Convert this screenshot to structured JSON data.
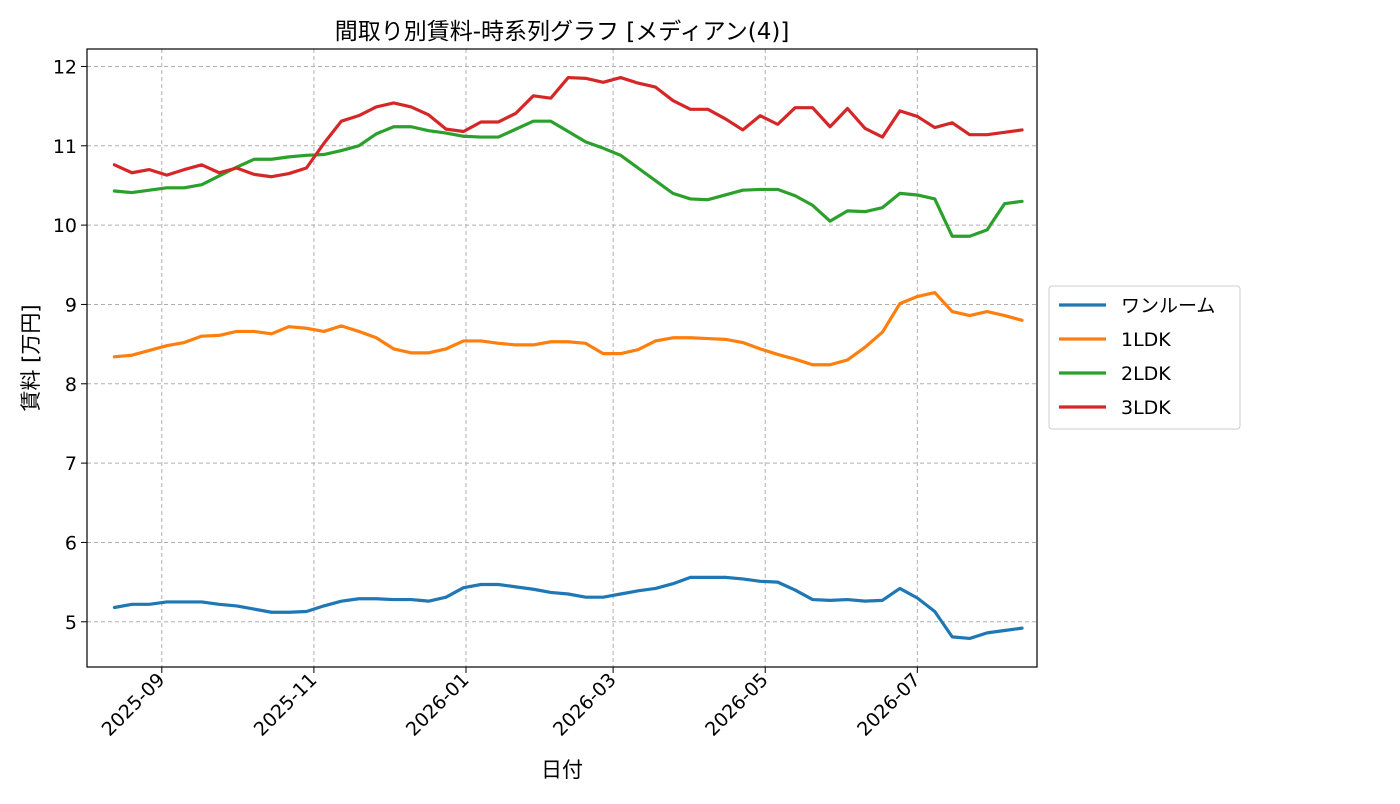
{
  "chart_data": {
    "type": "line",
    "title": "間取り別賃料-時系列グラフ [メディアン(4)]",
    "xlabel": "日付",
    "ylabel": "賃料 [万円]",
    "xlim": [
      "2025-08-02",
      "2026-08-18"
    ],
    "ylim": [
      4.43,
      12.22
    ],
    "x_ticks": [
      "2025-09",
      "2025-11",
      "2026-01",
      "2026-03",
      "2026-05",
      "2026-07"
    ],
    "y_ticks": [
      5,
      6,
      7,
      8,
      9,
      10,
      11,
      12
    ],
    "grid": true,
    "legend_position": "right",
    "x": [
      "2025-08-13",
      "2025-08-20",
      "2025-08-27",
      "2025-09-03",
      "2025-09-10",
      "2025-09-17",
      "2025-09-24",
      "2025-10-01",
      "2025-10-08",
      "2025-10-15",
      "2025-10-22",
      "2025-10-29",
      "2025-11-05",
      "2025-11-12",
      "2025-11-19",
      "2025-11-26",
      "2025-12-03",
      "2025-12-10",
      "2025-12-17",
      "2025-12-24",
      "2025-12-31",
      "2026-01-07",
      "2026-01-14",
      "2026-01-21",
      "2026-01-28",
      "2026-02-04",
      "2026-02-11",
      "2026-02-18",
      "2026-02-25",
      "2026-03-04",
      "2026-03-11",
      "2026-03-18",
      "2026-03-25",
      "2026-04-01",
      "2026-04-08",
      "2026-04-15",
      "2026-04-22",
      "2026-04-29",
      "2026-05-06",
      "2026-05-13",
      "2026-05-20",
      "2026-05-27",
      "2026-06-03",
      "2026-06-10",
      "2026-06-17",
      "2026-06-24",
      "2026-07-01",
      "2026-07-08",
      "2026-07-15",
      "2026-07-22",
      "2026-07-29",
      "2026-08-05",
      "2026-08-12"
    ],
    "series": [
      {
        "name": "ワンルーム",
        "color": "#1f77b4",
        "values": [
          5.18,
          5.22,
          5.22,
          5.25,
          5.25,
          5.25,
          5.22,
          5.2,
          5.16,
          5.12,
          5.12,
          5.13,
          5.2,
          5.26,
          5.29,
          5.29,
          5.28,
          5.28,
          5.26,
          5.31,
          5.43,
          5.47,
          5.47,
          5.44,
          5.41,
          5.37,
          5.35,
          5.31,
          5.31,
          5.35,
          5.39,
          5.42,
          5.48,
          5.56,
          5.56,
          5.56,
          5.54,
          5.51,
          5.5,
          5.4,
          5.28,
          5.27,
          5.28,
          5.26,
          5.27,
          5.42,
          5.3,
          5.13,
          4.81,
          4.79,
          4.86,
          4.89,
          4.92
        ]
      },
      {
        "name": "1LDK",
        "color": "#ff7f0e",
        "values": [
          8.34,
          8.36,
          8.42,
          8.48,
          8.52,
          8.6,
          8.61,
          8.66,
          8.66,
          8.63,
          8.72,
          8.7,
          8.66,
          8.73,
          8.66,
          8.58,
          8.44,
          8.39,
          8.39,
          8.44,
          8.54,
          8.54,
          8.51,
          8.49,
          8.49,
          8.53,
          8.53,
          8.51,
          8.38,
          8.38,
          8.43,
          8.54,
          8.58,
          8.58,
          8.57,
          8.56,
          8.52,
          8.44,
          8.37,
          8.31,
          8.24,
          8.24,
          8.3,
          8.46,
          8.65,
          9.01,
          9.1,
          9.15,
          8.91,
          8.86,
          8.91,
          8.86,
          8.8
        ]
      },
      {
        "name": "2LDK",
        "color": "#2ca02c",
        "values": [
          10.43,
          10.41,
          10.44,
          10.47,
          10.47,
          10.51,
          10.62,
          10.73,
          10.83,
          10.83,
          10.86,
          10.88,
          10.89,
          10.94,
          11.0,
          11.15,
          11.24,
          11.24,
          11.19,
          11.16,
          11.12,
          11.11,
          11.11,
          11.21,
          11.31,
          11.31,
          11.18,
          11.05,
          10.97,
          10.88,
          10.72,
          10.56,
          10.4,
          10.33,
          10.32,
          10.38,
          10.44,
          10.45,
          10.45,
          10.37,
          10.25,
          10.05,
          10.18,
          10.17,
          10.22,
          10.4,
          10.38,
          10.33,
          9.86,
          9.86,
          9.94,
          10.27,
          10.3
        ]
      },
      {
        "name": "3LDK",
        "color": "#d62728",
        "values": [
          10.76,
          10.66,
          10.7,
          10.63,
          10.7,
          10.76,
          10.66,
          10.72,
          10.64,
          10.61,
          10.65,
          10.72,
          11.03,
          11.31,
          11.38,
          11.49,
          11.54,
          11.49,
          11.39,
          11.21,
          11.18,
          11.3,
          11.3,
          11.41,
          11.63,
          11.6,
          11.86,
          11.85,
          11.8,
          11.86,
          11.79,
          11.74,
          11.57,
          11.46,
          11.46,
          11.34,
          11.2,
          11.38,
          11.27,
          11.48,
          11.48,
          11.24,
          11.47,
          11.22,
          11.11,
          11.44,
          11.37,
          11.23,
          11.29,
          11.14,
          11.14,
          11.17,
          11.2
        ]
      }
    ]
  }
}
